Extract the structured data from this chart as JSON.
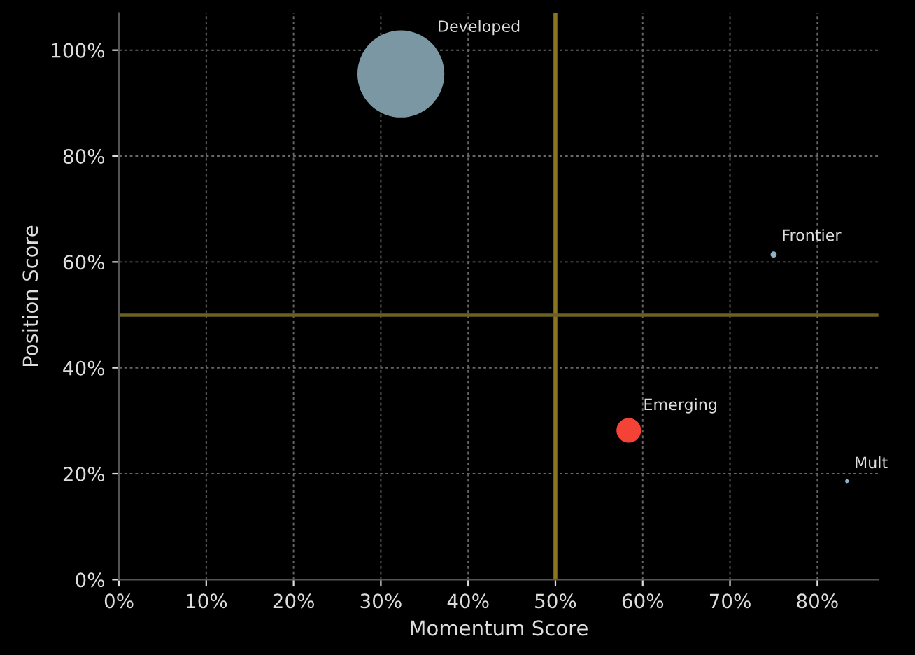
{
  "chart_data": {
    "type": "bubble",
    "xlabel": "Momentum Score",
    "ylabel": "Position Score",
    "xlim": [
      0,
      87
    ],
    "ylim": [
      0,
      107
    ],
    "xticks": [
      {
        "value": 0,
        "label": "0%"
      },
      {
        "value": 10,
        "label": "10%"
      },
      {
        "value": 20,
        "label": "20%"
      },
      {
        "value": 30,
        "label": "30%"
      },
      {
        "value": 40,
        "label": "40%"
      },
      {
        "value": 50,
        "label": "50%"
      },
      {
        "value": 60,
        "label": "60%"
      },
      {
        "value": 70,
        "label": "70%"
      },
      {
        "value": 80,
        "label": "80%"
      }
    ],
    "yticks": [
      {
        "value": 0,
        "label": "0%"
      },
      {
        "value": 20,
        "label": "20%"
      },
      {
        "value": 40,
        "label": "40%"
      },
      {
        "value": 60,
        "label": "60%"
      },
      {
        "value": 80,
        "label": "80%"
      },
      {
        "value": 100,
        "label": "100%"
      }
    ],
    "grid": true,
    "series": [
      {
        "name": "Developed",
        "color": "#7b97a4",
        "x": [
          32.3
        ],
        "values": [
          95.5
        ],
        "sizes": [
          1
        ]
      },
      {
        "name": "Emerging",
        "color": "#f44336",
        "x": [
          58.4
        ],
        "values": [
          28.2
        ],
        "sizes": [
          0.08
        ]
      },
      {
        "name": "Frontier",
        "color": "#8fb3c6",
        "x": [
          75.0
        ],
        "values": [
          61.4
        ],
        "sizes": [
          0.005
        ]
      },
      {
        "name": "Mult",
        "color": "#8fb3c6",
        "x": [
          83.4
        ],
        "values": [
          18.6
        ],
        "sizes": [
          0.002
        ]
      }
    ],
    "ref_lines": [
      {
        "axis": "x",
        "value": 50,
        "color": "#8a7420"
      },
      {
        "axis": "y",
        "value": 50,
        "color": "#6b6120"
      }
    ]
  }
}
